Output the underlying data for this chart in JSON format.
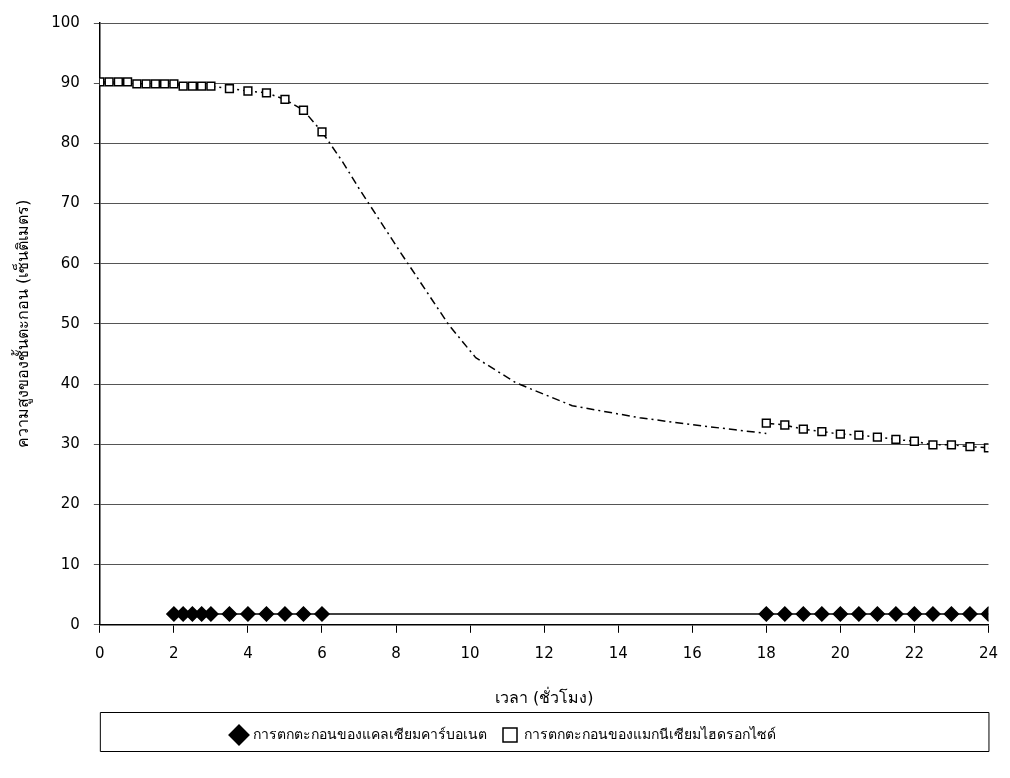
{
  "chart_data": {
    "type": "line",
    "xlabel": "เวลา (ชั่วโมง)",
    "ylabel": "ความสูงของชั้นตะกอน (เซ็นติเมตร)",
    "xlim": [
      0,
      24
    ],
    "xticks": [
      0,
      2,
      4,
      6,
      8,
      10,
      12,
      14,
      16,
      18,
      20,
      22,
      24
    ],
    "ylim": [
      0,
      100
    ],
    "yticks": [
      0,
      10,
      20,
      30,
      40,
      50,
      60,
      70,
      80,
      90,
      100
    ],
    "grid": "y",
    "legend": "bottom",
    "series": [
      {
        "name": "การตกตะกอนของแคลเซียมคาร์บอเนต",
        "color": "#000000",
        "marker": "diamond",
        "line_style": "solid",
        "x": [
          2,
          2.25,
          2.5,
          2.75,
          3,
          3.5,
          4,
          4.5,
          5,
          5.5,
          6,
          18,
          18.5,
          19,
          19.5,
          20,
          20.5,
          21,
          21.5,
          22,
          22.5,
          23,
          23.5,
          24
        ],
        "values": [
          1.8,
          1.8,
          1.8,
          1.8,
          1.8,
          1.8,
          1.8,
          1.8,
          1.8,
          1.8,
          1.8,
          1.8,
          1.8,
          1.8,
          1.8,
          1.8,
          1.8,
          1.8,
          1.8,
          1.8,
          1.8,
          1.8,
          1.8,
          1.8
        ]
      },
      {
        "name": "การตกตะกอนของแมกนีเซียมไฮดรอกไซด์",
        "color": "#000000",
        "marker": "square",
        "line_style": "dashed",
        "x": [
          0,
          0.25,
          0.5,
          0.75,
          1,
          1.25,
          1.5,
          1.75,
          2,
          2.25,
          2.5,
          2.75,
          3,
          3.5,
          4,
          4.5,
          5,
          5.5,
          6,
          12,
          18,
          18.5,
          19,
          19.5,
          20,
          20.5,
          21,
          21.5,
          22,
          22.5,
          23,
          23.5,
          24
        ],
        "values": [
          90.2,
          90.2,
          90.2,
          90.2,
          89.9,
          89.9,
          89.9,
          89.9,
          89.9,
          89.5,
          89.5,
          89.5,
          89.5,
          89.1,
          88.7,
          88.4,
          87.3,
          85.5,
          81.9,
          null,
          33.5,
          33.2,
          32.5,
          32.1,
          31.7,
          31.5,
          31.2,
          30.8,
          30.5,
          29.9,
          29.9,
          29.6,
          29.4
        ]
      },
      {
        "color": "#000000",
        "marker": "none",
        "line_style": "dashed",
        "x": [
          6,
          6.54,
          7,
          8.15,
          9.43,
          10.15,
          11.24,
          12.76,
          14.58,
          15.94,
          17.16,
          18
        ],
        "values": [
          81.9,
          77.1,
          72.5,
          61.6,
          49.8,
          44.4,
          40.2,
          36.4,
          34.4,
          33.3,
          32.4,
          31.8
        ]
      }
    ]
  }
}
